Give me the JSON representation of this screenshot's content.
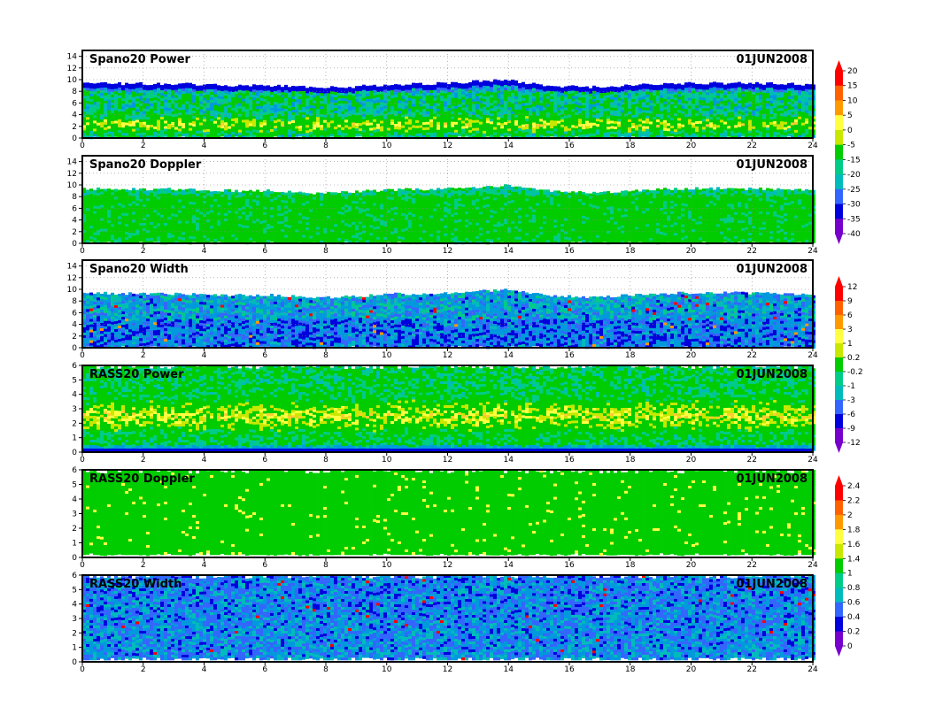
{
  "chart_data": [
    {
      "type": "heatmap",
      "title": "Spano20  Power",
      "date": "01JUN2008",
      "x_ticks": [
        "0",
        "2",
        "4",
        "6",
        "8",
        "10",
        "12",
        "14",
        "16",
        "18",
        "20",
        "22",
        "24"
      ],
      "y_ticks": [
        "0",
        "2",
        "4",
        "6",
        "8",
        "10",
        "12",
        "14"
      ],
      "xlim": [
        0,
        24
      ],
      "ylim": [
        0,
        15
      ],
      "grid": true,
      "colorbar": [
        "20",
        "15",
        "10",
        "5",
        "0",
        "-5",
        "-15",
        "-20",
        "-25",
        "-30",
        "-35",
        "-40"
      ],
      "palette": "power",
      "field": {
        "top": [
          9.4,
          9.3,
          9.3,
          9.2,
          9.0,
          9.0,
          8.6,
          8.8,
          9.2,
          9.3,
          9.6,
          9.9,
          9.0,
          8.7,
          8.9,
          9.3,
          9.4,
          9.4,
          9.3,
          9.2
        ],
        "top_start_hour": 0,
        "bottom": 0.3
      }
    },
    {
      "type": "heatmap",
      "title": "Spano20  Doppler",
      "date": "01JUN2008",
      "x_ticks": [
        "0",
        "2",
        "4",
        "6",
        "8",
        "10",
        "12",
        "14",
        "16",
        "18",
        "20",
        "22",
        "24"
      ],
      "y_ticks": [
        "0",
        "2",
        "4",
        "6",
        "8",
        "10",
        "12",
        "14"
      ],
      "xlim": [
        0,
        24
      ],
      "ylim": [
        0,
        15
      ],
      "grid": true,
      "palette": "doppler",
      "field": {
        "top": [
          9.4,
          9.3,
          9.3,
          9.2,
          9.0,
          9.0,
          8.6,
          8.8,
          9.2,
          9.3,
          9.6,
          9.9,
          9.0,
          8.7,
          8.9,
          9.3,
          9.4,
          9.4,
          9.3,
          9.2
        ],
        "top_start_hour": 0,
        "bottom": 0.3
      }
    },
    {
      "type": "heatmap",
      "title": "Spano20  Width",
      "date": "01JUN2008",
      "x_ticks": [
        "0",
        "2",
        "4",
        "6",
        "8",
        "10",
        "12",
        "14",
        "16",
        "18",
        "20",
        "22",
        "24"
      ],
      "y_ticks": [
        "0",
        "2",
        "4",
        "6",
        "8",
        "10",
        "12",
        "14"
      ],
      "xlim": [
        0,
        24
      ],
      "ylim": [
        0,
        15
      ],
      "grid": true,
      "colorbar": [
        "12",
        "9",
        "6",
        "3",
        "1",
        "0.2",
        "-0.2",
        "-1",
        "-3",
        "-6",
        "-9",
        "-12"
      ],
      "palette": "width",
      "field": {
        "top": [
          9.4,
          9.3,
          9.3,
          9.2,
          9.0,
          9.0,
          8.6,
          8.8,
          9.2,
          9.3,
          9.6,
          9.9,
          9.0,
          8.7,
          8.9,
          9.3,
          9.4,
          9.4,
          9.3,
          9.2
        ],
        "top_start_hour": 0,
        "bottom": 0.3
      }
    },
    {
      "type": "heatmap",
      "title": "RASS20  Power",
      "date": "01JUN2008",
      "x_ticks": [
        "0",
        "2",
        "4",
        "6",
        "8",
        "10",
        "12",
        "14",
        "16",
        "18",
        "20",
        "22",
        "24"
      ],
      "y_ticks": [
        "0",
        "1",
        "2",
        "3",
        "4",
        "5",
        "6"
      ],
      "xlim": [
        0,
        24
      ],
      "ylim": [
        0,
        6
      ],
      "grid": false,
      "palette": "rasspower",
      "field": {
        "top": [
          6
        ],
        "top_start_hour": 0,
        "bottom": 0.2
      }
    },
    {
      "type": "heatmap",
      "title": "RASS20  Doppler",
      "date": "01JUN2008",
      "x_ticks": [
        "0",
        "2",
        "4",
        "6",
        "8",
        "10",
        "12",
        "14",
        "16",
        "18",
        "20",
        "22",
        "24"
      ],
      "y_ticks": [
        "0",
        "1",
        "2",
        "3",
        "4",
        "5",
        "6"
      ],
      "xlim": [
        0,
        24
      ],
      "ylim": [
        0,
        6
      ],
      "grid": false,
      "colorbar": [
        "2.4",
        "2.2",
        "2",
        "1.8",
        "1.6",
        "1.4",
        "1",
        "0.8",
        "0.6",
        "0.4",
        "0.2",
        "0"
      ],
      "palette": "rassdoppler",
      "field": {
        "top": [
          6
        ],
        "top_start_hour": 0,
        "bottom": 0.3
      }
    },
    {
      "type": "heatmap",
      "title": "RASS20  Width",
      "date": "01JUN2008",
      "x_ticks": [
        "0",
        "2",
        "4",
        "6",
        "8",
        "10",
        "12",
        "14",
        "16",
        "18",
        "20",
        "22",
        "24"
      ],
      "y_ticks": [
        "0",
        "1",
        "2",
        "3",
        "4",
        "5",
        "6"
      ],
      "xlim": [
        0,
        24
      ],
      "ylim": [
        0,
        6
      ],
      "grid": false,
      "palette": "rasswidth",
      "field": {
        "top": [
          6
        ],
        "top_start_hour": 0,
        "bottom": 0.3
      }
    }
  ],
  "colors": {
    "scale": [
      "#ff0000",
      "#ff6000",
      "#ff9900",
      "#ffcc33",
      "#ffff40",
      "#c8e800",
      "#00cc00",
      "#00cc88",
      "#00bbbb",
      "#0099dd",
      "#3366ff",
      "#0000dd",
      "#7700cc"
    ],
    "frame": "#000000",
    "grid": "#888888"
  }
}
